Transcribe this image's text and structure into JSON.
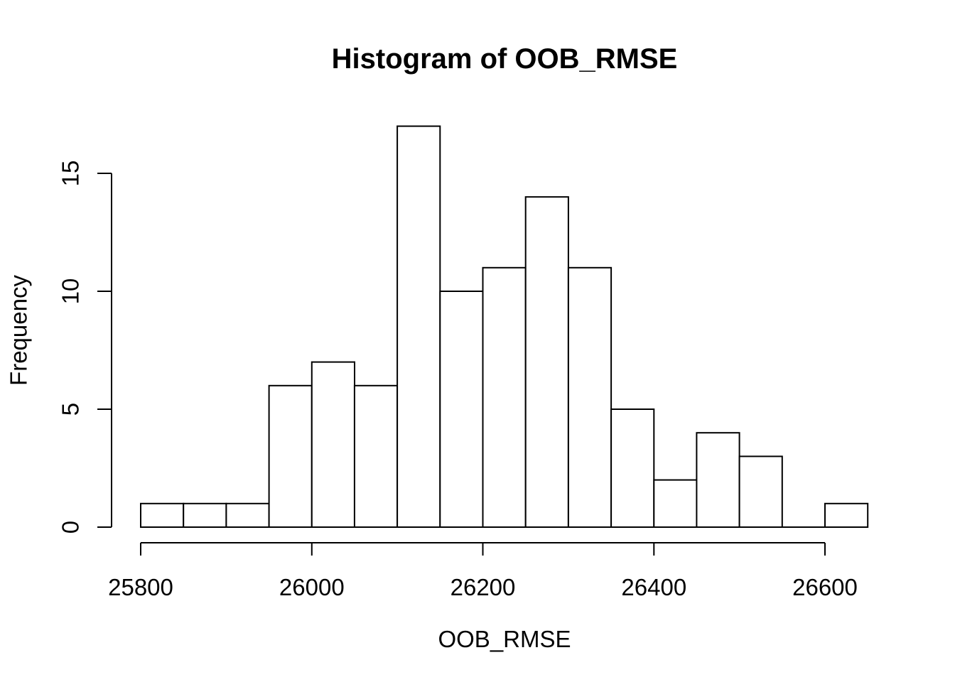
{
  "chart_data": {
    "type": "bar",
    "subtype": "histogram",
    "title": "Histogram of OOB_RMSE",
    "xlabel": "OOB_RMSE",
    "ylabel": "Frequency",
    "bin_start": 25800,
    "bin_width": 50,
    "bin_edges": [
      25800,
      25850,
      25900,
      25950,
      26000,
      26050,
      26100,
      26150,
      26200,
      26250,
      26300,
      26350,
      26400,
      26450,
      26500,
      26550,
      26600,
      26650
    ],
    "counts": [
      1,
      1,
      1,
      6,
      7,
      6,
      17,
      10,
      11,
      14,
      11,
      5,
      2,
      4,
      3,
      0,
      1
    ],
    "x_ticks": [
      25800,
      26000,
      26200,
      26400,
      26600
    ],
    "y_ticks": [
      0,
      5,
      10,
      15
    ],
    "xlim": [
      25800,
      26650
    ],
    "ylim": [
      0,
      17
    ],
    "grid": false,
    "legend": "none",
    "bar_fill": "#ffffff",
    "bar_stroke": "#000000",
    "axis_color": "#000000",
    "text_color": "#000000",
    "background": "#ffffff"
  }
}
